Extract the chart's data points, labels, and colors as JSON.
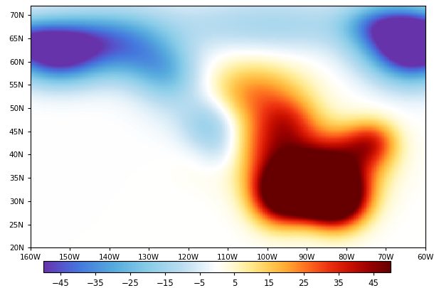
{
  "lon_min": -160,
  "lon_max": -60,
  "lat_min": 20,
  "lat_max": 72,
  "colorbar_ticks": [
    -45,
    -35,
    -25,
    -15,
    -5,
    5,
    15,
    25,
    35,
    45
  ],
  "vmin": -50,
  "vmax": 50,
  "land_color": "#aaaaaa",
  "figsize": [
    6.1,
    4.05
  ],
  "dpi": 100,
  "xticks": [
    -160,
    -150,
    -140,
    -130,
    -120,
    -110,
    -100,
    -90,
    -80,
    -70,
    -60
  ],
  "yticks": [
    20,
    25,
    30,
    35,
    40,
    45,
    50,
    55,
    60,
    65,
    70
  ],
  "xlabel_template": "{d}W",
  "ylabel_template": "{d}N"
}
